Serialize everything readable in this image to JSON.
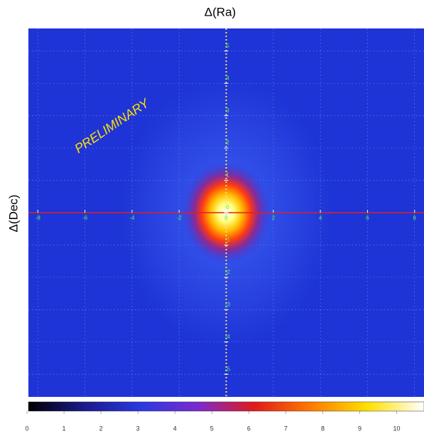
{
  "chart_data": {
    "type": "skymap",
    "title": "Δ(Ra)",
    "ylabel": "Δ(Dec)",
    "annotation": "PRELIMINARY",
    "xlim": [
      -8.4,
      8.4
    ],
    "ylim": [
      -5.7,
      5.7
    ],
    "xticks": [
      -8,
      -6,
      -4,
      -2,
      0,
      2,
      4,
      6,
      8
    ],
    "yticks": [
      -5,
      -4,
      -3,
      -2,
      -1,
      0,
      1,
      2,
      3,
      4,
      5
    ],
    "source": {
      "x": 0,
      "y": 0,
      "peak": 10
    },
    "clim": [
      0,
      10.7
    ],
    "cticks": [
      0,
      1,
      2,
      3,
      4,
      5,
      6,
      7,
      8,
      9,
      10
    ],
    "colormap": [
      "#000000",
      "#1a1a8c",
      "#2a3ae0",
      "#7a2ad0",
      "#e01a1a",
      "#ff7a00",
      "#ffe000",
      "#ffffff"
    ],
    "background": "#1e34d6",
    "grid": true
  }
}
